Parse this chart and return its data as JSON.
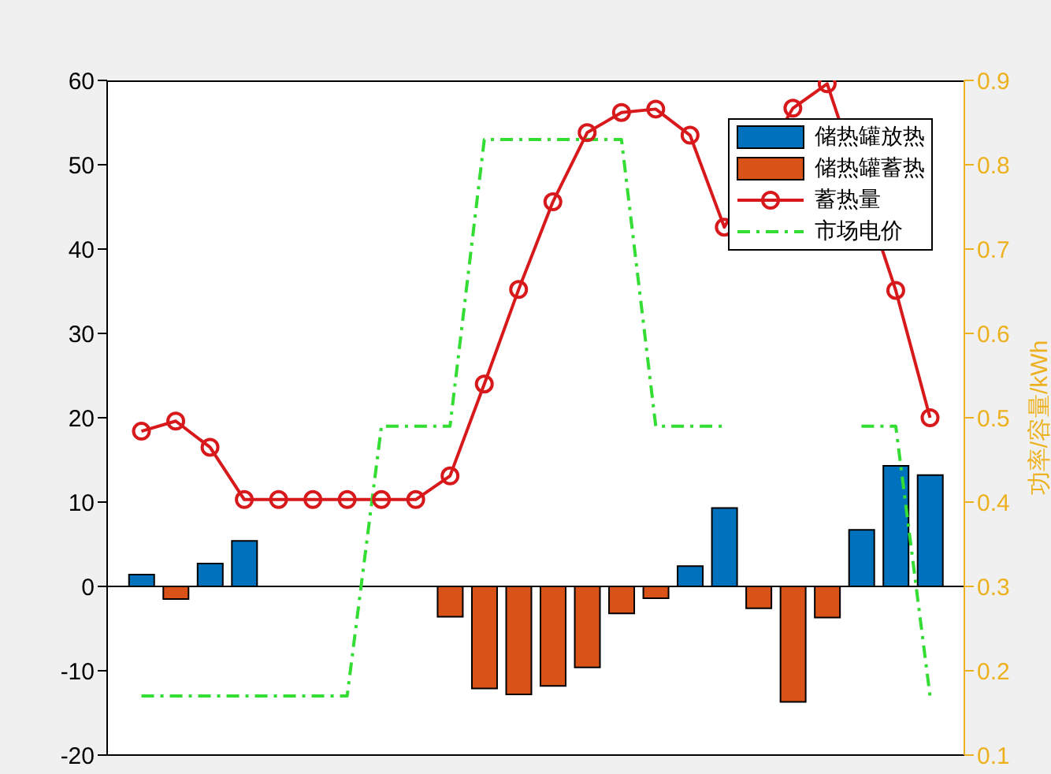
{
  "chart_data": {
    "type": "bar",
    "y2label": "功率/容量/kWh",
    "categories": [
      null,
      null,
      null,
      null,
      null,
      null,
      null,
      null,
      null,
      null,
      null,
      null,
      null,
      null,
      null,
      null,
      null,
      null,
      null,
      null,
      null,
      null,
      null,
      null
    ],
    "series": [
      {
        "name": "储热罐放热",
        "color": "#0072bd",
        "values": [
          1.4,
          null,
          2.7,
          5.4,
          null,
          null,
          null,
          null,
          null,
          null,
          null,
          null,
          null,
          null,
          null,
          null,
          2.4,
          9.3,
          null,
          null,
          null,
          6.7,
          14.3,
          13.2
        ]
      },
      {
        "name": "储热罐蓄热",
        "color": "#d95319",
        "values": [
          null,
          -1.5,
          null,
          null,
          null,
          null,
          null,
          null,
          null,
          -3.6,
          -12.1,
          -12.8,
          -11.8,
          -9.6,
          -3.2,
          -1.4,
          null,
          null,
          -2.6,
          -13.7,
          -3.7,
          null,
          null,
          null
        ]
      },
      {
        "name": "蓄热量",
        "type": "line",
        "color": "#d7191c",
        "marker": "circle",
        "line_style": "solid",
        "values": [
          18.4,
          19.6,
          16.5,
          10.3,
          10.3,
          10.3,
          10.3,
          10.3,
          10.3,
          13.1,
          24.0,
          35.2,
          45.6,
          53.8,
          56.2,
          56.6,
          53.5,
          42.6,
          null,
          56.7,
          59.6,
          null,
          35.1,
          20.0
        ]
      },
      {
        "name": "市场电价",
        "type": "line",
        "axis": "y2",
        "color": "#33dd33",
        "marker": "none",
        "line_style": "dashed",
        "values": [
          0.17,
          0.17,
          0.17,
          0.17,
          0.17,
          0.17,
          0.17,
          0.49,
          0.49,
          0.49,
          0.83,
          0.83,
          0.83,
          0.83,
          0.83,
          0.49,
          0.49,
          0.49,
          null,
          null,
          null,
          0.49,
          0.49,
          0.17
        ]
      }
    ],
    "ylim": [
      -20,
      60
    ],
    "yticks": [
      -20,
      -10,
      0,
      10,
      20,
      30,
      40,
      50,
      60
    ],
    "y2lim": [
      0.1,
      0.9
    ],
    "y2ticks": [
      0.1,
      0.2,
      0.3,
      0.4,
      0.5,
      0.6,
      0.7,
      0.8,
      0.9
    ],
    "tick_labels": "y",
    "legend": "top right"
  }
}
